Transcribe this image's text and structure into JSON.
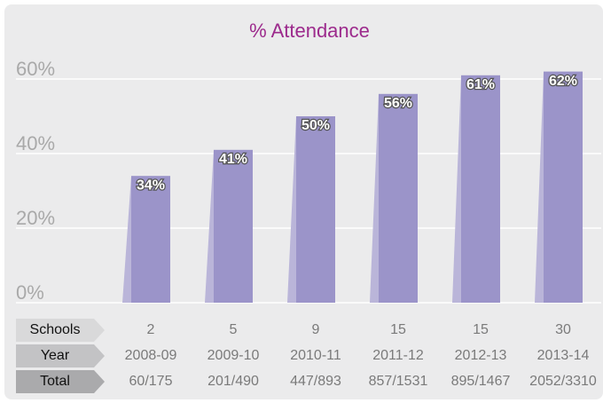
{
  "chart_data": {
    "type": "bar",
    "title": "% Attendance",
    "categories": [
      "2008-09",
      "2009-10",
      "2010-11",
      "2011-12",
      "2012-13",
      "2013-14"
    ],
    "values": [
      34,
      41,
      50,
      56,
      61,
      62
    ],
    "value_labels": [
      "34%",
      "41%",
      "50%",
      "56%",
      "61%",
      "62%"
    ],
    "color": "#9b94c9",
    "ylim": [
      0,
      70
    ],
    "yticks": [
      {
        "value": 0,
        "label": "0%"
      },
      {
        "value": 20,
        "label": "20%"
      },
      {
        "value": 40,
        "label": "40%"
      },
      {
        "value": 60,
        "label": "60%"
      }
    ],
    "grid": true,
    "table": {
      "rows": [
        {
          "label": "Schools",
          "values": [
            "2",
            "5",
            "9",
            "15",
            "15",
            "30"
          ]
        },
        {
          "label": "Year"
        },
        {
          "label": "Total",
          "values": [
            "60/175",
            "201/490",
            "447/893",
            "857/1531",
            "895/1467",
            "2052/3310"
          ]
        }
      ]
    }
  }
}
